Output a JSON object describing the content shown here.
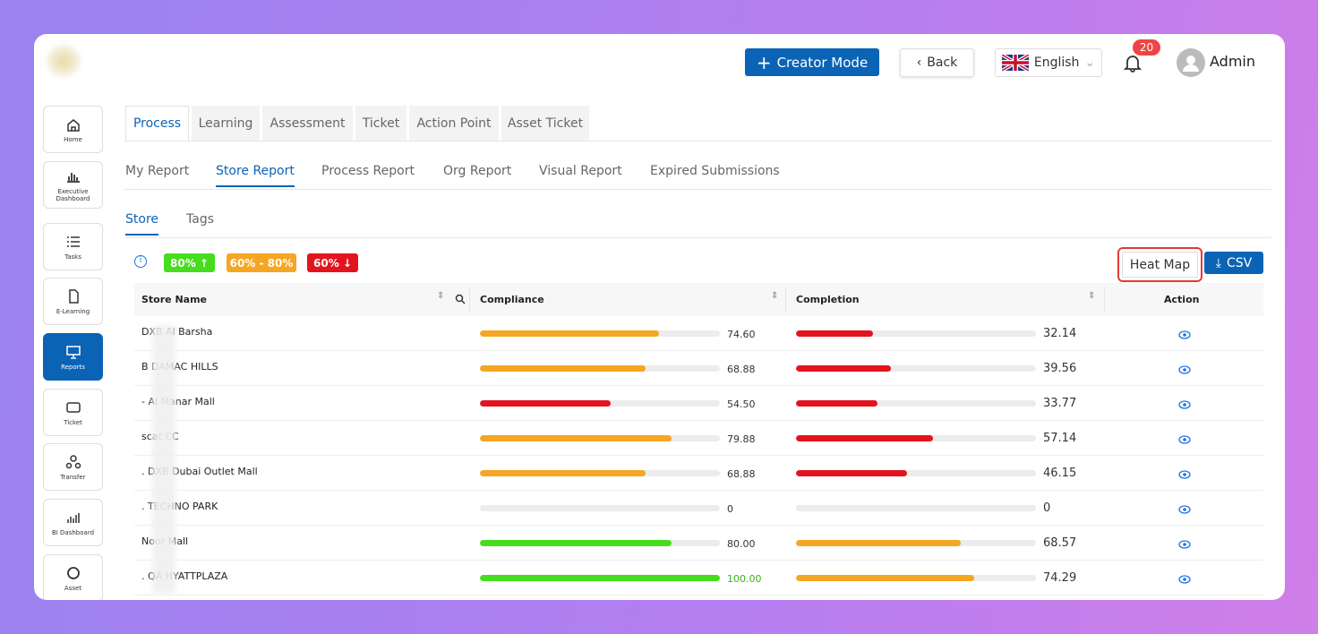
{
  "header": {
    "creator_mode": "Creator Mode",
    "back": "Back",
    "language": "English",
    "notifications": "20",
    "user": "Admin"
  },
  "sidebar": [
    "Home",
    "Executive Dashboard",
    "Tasks",
    "E-Learning",
    "Reports",
    "Ticket",
    "Transfer",
    "BI Dashboard",
    "Asset"
  ],
  "tabs": [
    "Process",
    "Learning",
    "Assessment",
    "Ticket",
    "Action Point",
    "Asset Ticket"
  ],
  "sub_tabs": [
    "My Report",
    "Store Report",
    "Process Report",
    "Org Report",
    "Visual Report",
    "Expired Submissions"
  ],
  "view_tabs": [
    "Store",
    "Tags"
  ],
  "legend": [
    {
      "label": "80% ↑",
      "color": "#45dd1c"
    },
    {
      "label": "60% - 80%",
      "color": "#f5a623"
    },
    {
      "label": "60% ↓",
      "color": "#e3141e"
    }
  ],
  "buttons": {
    "heat_map": "Heat Map",
    "csv": "CSV"
  },
  "table": {
    "columns": [
      "Store Name",
      "Compliance",
      "Completion",
      "Action"
    ],
    "rows": [
      {
        "store": "DXB Al Barsha",
        "compliance": {
          "value": 74.6,
          "label": "74.60",
          "color": "#f5a623"
        },
        "completion": {
          "value": 32.14,
          "label": "32.14",
          "color": "#e3141e"
        }
      },
      {
        "store": "B DAMAC HILLS",
        "compliance": {
          "value": 68.88,
          "label": "68.88",
          "color": "#f5a623"
        },
        "completion": {
          "value": 39.56,
          "label": "39.56",
          "color": "#e3141e"
        }
      },
      {
        "store": "- Al Manar Mall",
        "compliance": {
          "value": 54.5,
          "label": "54.50",
          "color": "#e3141e"
        },
        "completion": {
          "value": 33.77,
          "label": "33.77",
          "color": "#e3141e"
        }
      },
      {
        "store": "scat CC",
        "compliance": {
          "value": 79.88,
          "label": "79.88",
          "color": "#f5a623"
        },
        "completion": {
          "value": 57.14,
          "label": "57.14",
          "color": "#e3141e"
        }
      },
      {
        "store": ". DXB Dubai Outlet Mall",
        "compliance": {
          "value": 68.88,
          "label": "68.88",
          "color": "#f5a623"
        },
        "completion": {
          "value": 46.15,
          "label": "46.15",
          "color": "#e3141e"
        }
      },
      {
        "store": ". TECHNO PARK",
        "compliance": {
          "value": 0,
          "label": "0",
          "color": "#e3141e"
        },
        "completion": {
          "value": 0,
          "label": "0",
          "color": "#e3141e"
        }
      },
      {
        "store": "Noor Mall",
        "compliance": {
          "value": 80,
          "label": "80.00",
          "color": "#45dd1c"
        },
        "completion": {
          "value": 68.57,
          "label": "68.57",
          "color": "#f5a623"
        }
      },
      {
        "store": ". QA HYATTPLAZA",
        "compliance": {
          "value": 100,
          "label": "100.00",
          "color": "#45dd1c"
        },
        "completion": {
          "value": 74.29,
          "label": "74.29",
          "color": "#f5a623"
        }
      }
    ]
  }
}
